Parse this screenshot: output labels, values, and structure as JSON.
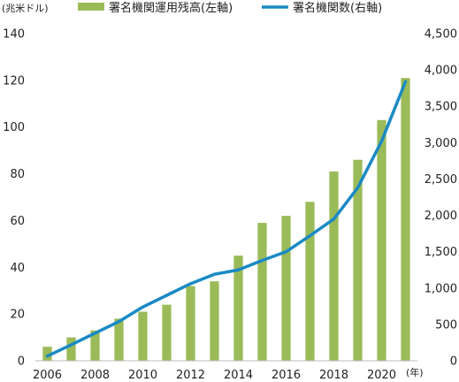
{
  "chart_data": {
    "type": "bar",
    "categories": [
      "2006",
      "2007",
      "2008",
      "2009",
      "2010",
      "2011",
      "2012",
      "2013",
      "2014",
      "2015",
      "2016",
      "2017",
      "2018",
      "2019",
      "2020",
      "2021"
    ],
    "series": [
      {
        "name": "署名機関運用残高(左軸)",
        "type": "bar",
        "axis": "left",
        "color": "#9bbb59",
        "values": [
          6,
          10,
          13,
          18,
          21,
          24,
          32,
          34,
          45,
          59,
          62,
          68,
          81,
          86,
          103,
          121
        ]
      },
      {
        "name": "署名機関数(右軸)",
        "type": "line",
        "axis": "right",
        "color": "#1a8ac4",
        "values": [
          65,
          220,
          380,
          540,
          740,
          900,
          1060,
          1190,
          1250,
          1380,
          1500,
          1720,
          1950,
          2380,
          3020,
          3840
        ]
      }
    ],
    "y_left": {
      "ylim": [
        0,
        140
      ],
      "ticks": [
        "0",
        "20",
        "40",
        "60",
        "80",
        "100",
        "120",
        "140"
      ],
      "unit": "(兆米ドル)"
    },
    "y_right": {
      "ylim": [
        0,
        4500
      ],
      "ticks": [
        "0",
        "500",
        "1,000",
        "1,500",
        "2,000",
        "2,500",
        "3,000",
        "3,500",
        "4,000",
        "4,500"
      ]
    },
    "x_tick_labels": [
      "2006",
      "",
      "2008",
      "",
      "2010",
      "",
      "2012",
      "",
      "2014",
      "",
      "2016",
      "",
      "2018",
      "",
      "2020",
      ""
    ],
    "x_unit": "(年)",
    "legend_position": "top",
    "grid": false
  }
}
